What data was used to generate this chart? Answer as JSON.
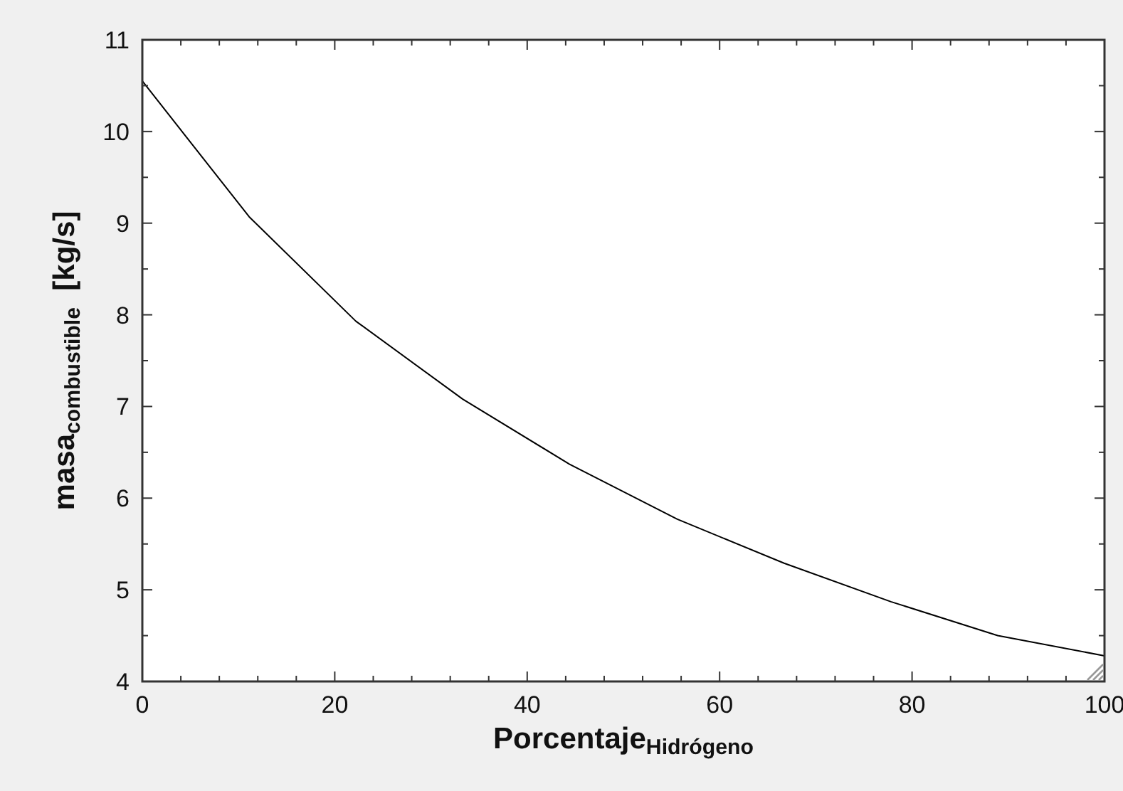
{
  "chart_data": {
    "type": "line",
    "xlabel": "Porcentaje$_{Hidrógeno}$",
    "ylabel": "masa$_{combustible}$  [kg/s]",
    "x": [
      0,
      11.1,
      22.2,
      33.3,
      44.4,
      55.6,
      66.7,
      77.8,
      88.9,
      100
    ],
    "series": [
      {
        "color": "#000000",
        "values": [
          10.55,
          9.07,
          7.93,
          7.08,
          6.37,
          5.77,
          5.29,
          4.87,
          4.5,
          4.28
        ]
      }
    ],
    "xlim": [
      0,
      100
    ],
    "ylim": [
      4,
      11
    ],
    "xticks": [
      0,
      {
        "value": 4,
        "label": null
      },
      {
        "value": 8,
        "label": null
      },
      {
        "value": 12,
        "label": null
      },
      {
        "value": 16,
        "label": null
      },
      20,
      {
        "value": 24,
        "label": null
      },
      {
        "value": 28,
        "label": null
      },
      {
        "value": 32,
        "label": null
      },
      {
        "value": 36,
        "label": null
      },
      40,
      {
        "value": 44,
        "label": null
      },
      {
        "value": 48,
        "label": null
      },
      {
        "value": 52,
        "label": null
      },
      {
        "value": 56,
        "label": null
      },
      60,
      {
        "value": 64,
        "label": null
      },
      {
        "value": 68,
        "label": null
      },
      {
        "value": 72,
        "label": null
      },
      {
        "value": 76,
        "label": null
      },
      80,
      {
        "value": 84,
        "label": null
      },
      {
        "value": 88,
        "label": null
      },
      {
        "value": 92,
        "label": null
      },
      {
        "value": 96,
        "label": null
      },
      100
    ],
    "yticks": [
      4,
      {
        "value": 4.5,
        "label": null
      },
      5,
      {
        "value": 5.5,
        "label": null
      },
      6,
      {
        "value": 6.5,
        "label": null
      },
      7,
      {
        "value": 7.5,
        "label": null
      },
      8,
      {
        "value": 8.5,
        "label": null
      },
      9,
      {
        "value": 9.5,
        "label": null
      },
      10,
      {
        "value": 10.5,
        "label": null
      },
      11
    ],
    "grid": false,
    "marker": "none",
    "line_style": "solid"
  }
}
